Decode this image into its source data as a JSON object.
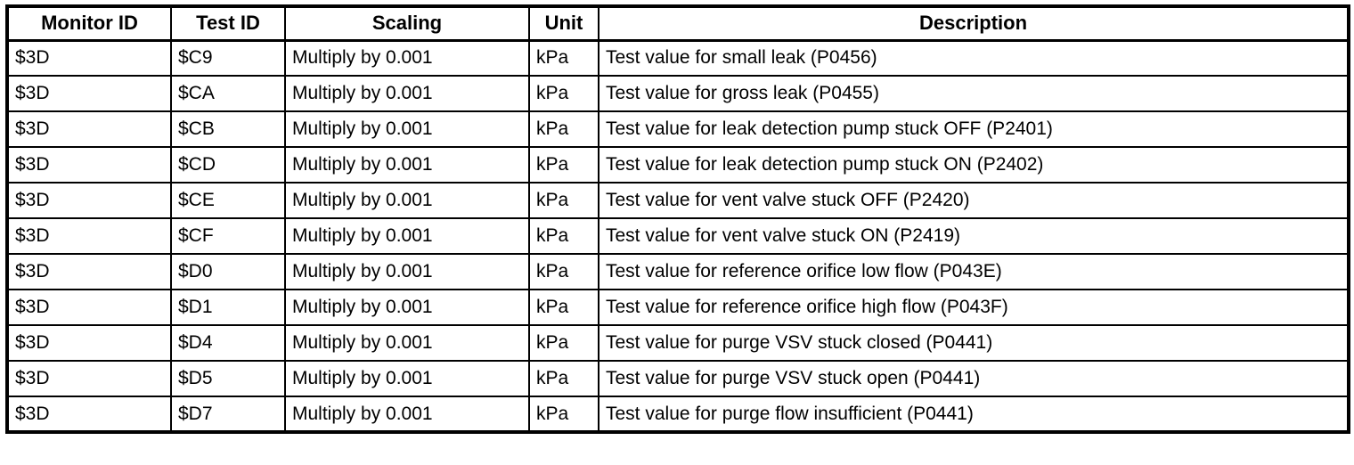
{
  "table": {
    "header": [
      "Monitor ID",
      "Test ID",
      "Scaling",
      "Unit",
      "Description"
    ],
    "rows": [
      [
        "$3D",
        "$C9",
        "Multiply by 0.001",
        "kPa",
        "Test value for small leak (P0456)"
      ],
      [
        "$3D",
        "$CA",
        "Multiply by 0.001",
        "kPa",
        "Test value for gross leak (P0455)"
      ],
      [
        "$3D",
        "$CB",
        "Multiply by 0.001",
        "kPa",
        "Test value for leak detection pump stuck OFF (P2401)"
      ],
      [
        "$3D",
        "$CD",
        "Multiply by 0.001",
        "kPa",
        "Test value for leak detection pump stuck ON (P2402)"
      ],
      [
        "$3D",
        "$CE",
        "Multiply by 0.001",
        "kPa",
        "Test value for vent valve stuck OFF (P2420)"
      ],
      [
        "$3D",
        "$CF",
        "Multiply by 0.001",
        "kPa",
        "Test value for vent valve stuck ON (P2419)"
      ],
      [
        "$3D",
        "$D0",
        "Multiply by 0.001",
        "kPa",
        "Test value for reference orifice low flow (P043E)"
      ],
      [
        "$3D",
        "$D1",
        "Multiply by 0.001",
        "kPa",
        "Test value for reference orifice high flow (P043F)"
      ],
      [
        "$3D",
        "$D4",
        "Multiply by 0.001",
        "kPa",
        "Test value for purge VSV stuck closed (P0441)"
      ],
      [
        "$3D",
        "$D5",
        "Multiply by 0.001",
        "kPa",
        "Test value for purge VSV stuck open (P0441)"
      ],
      [
        "$3D",
        "$D7",
        "Multiply by 0.001",
        "kPa",
        "Test value for purge flow insufficient (P0441)"
      ]
    ],
    "column_names": [
      "monitor-id",
      "test-id",
      "scaling",
      "unit",
      "description"
    ]
  },
  "colors": {
    "border": "#000000",
    "background": "#ffffff",
    "text": "#000000"
  }
}
